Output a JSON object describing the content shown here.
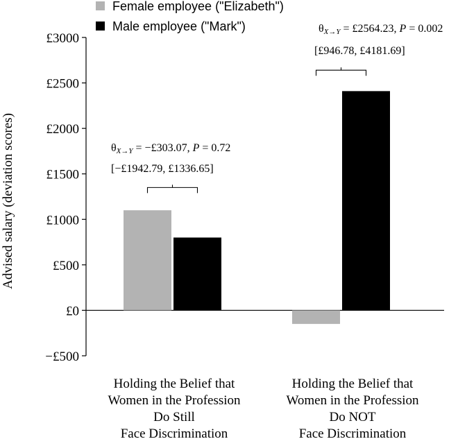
{
  "chart_data": {
    "type": "bar",
    "ylabel": "Advised salary (deviation scores)",
    "ylim": [
      -500,
      3000
    ],
    "yticks": [
      3000,
      2500,
      2000,
      1500,
      1000,
      500,
      0,
      -500
    ],
    "ytick_labels": [
      "£3000",
      "£2500",
      "£2000",
      "£1500",
      "£1000",
      "£500",
      "£0",
      "−£500"
    ],
    "categories": [
      [
        "Holding the Belief that",
        "Women in the Profession",
        "Do Still",
        "Face Discrimination"
      ],
      [
        "Holding the Belief that",
        "Women in the Profession",
        "Do NOT",
        "Face Discrimination"
      ]
    ],
    "series": [
      {
        "name": "Female employee (\"Elizabeth\")",
        "color": "#b3b3b3",
        "values": [
          1100,
          -150
        ]
      },
      {
        "name": "Male employee (\"Mark\")",
        "color": "#000000",
        "values": [
          800,
          2410
        ]
      }
    ],
    "legend_position": "top-left",
    "grid": false,
    "annotations": [
      {
        "category": 0,
        "theta_label": "θ",
        "subscript": "X→Y",
        "rest": " = −£303.07, ",
        "p_label": "P",
        "p_rest": " = 0.72",
        "ci": "[−£1942.79, £1336.65]",
        "bracket_at": 1350
      },
      {
        "category": 1,
        "theta_label": "θ",
        "subscript": "X→Y",
        "rest": " = £2564.23, ",
        "p_label": "P",
        "p_rest": " = 0.002",
        "ci": "[£946.78, £4181.69]",
        "bracket_at": 2640
      }
    ]
  }
}
